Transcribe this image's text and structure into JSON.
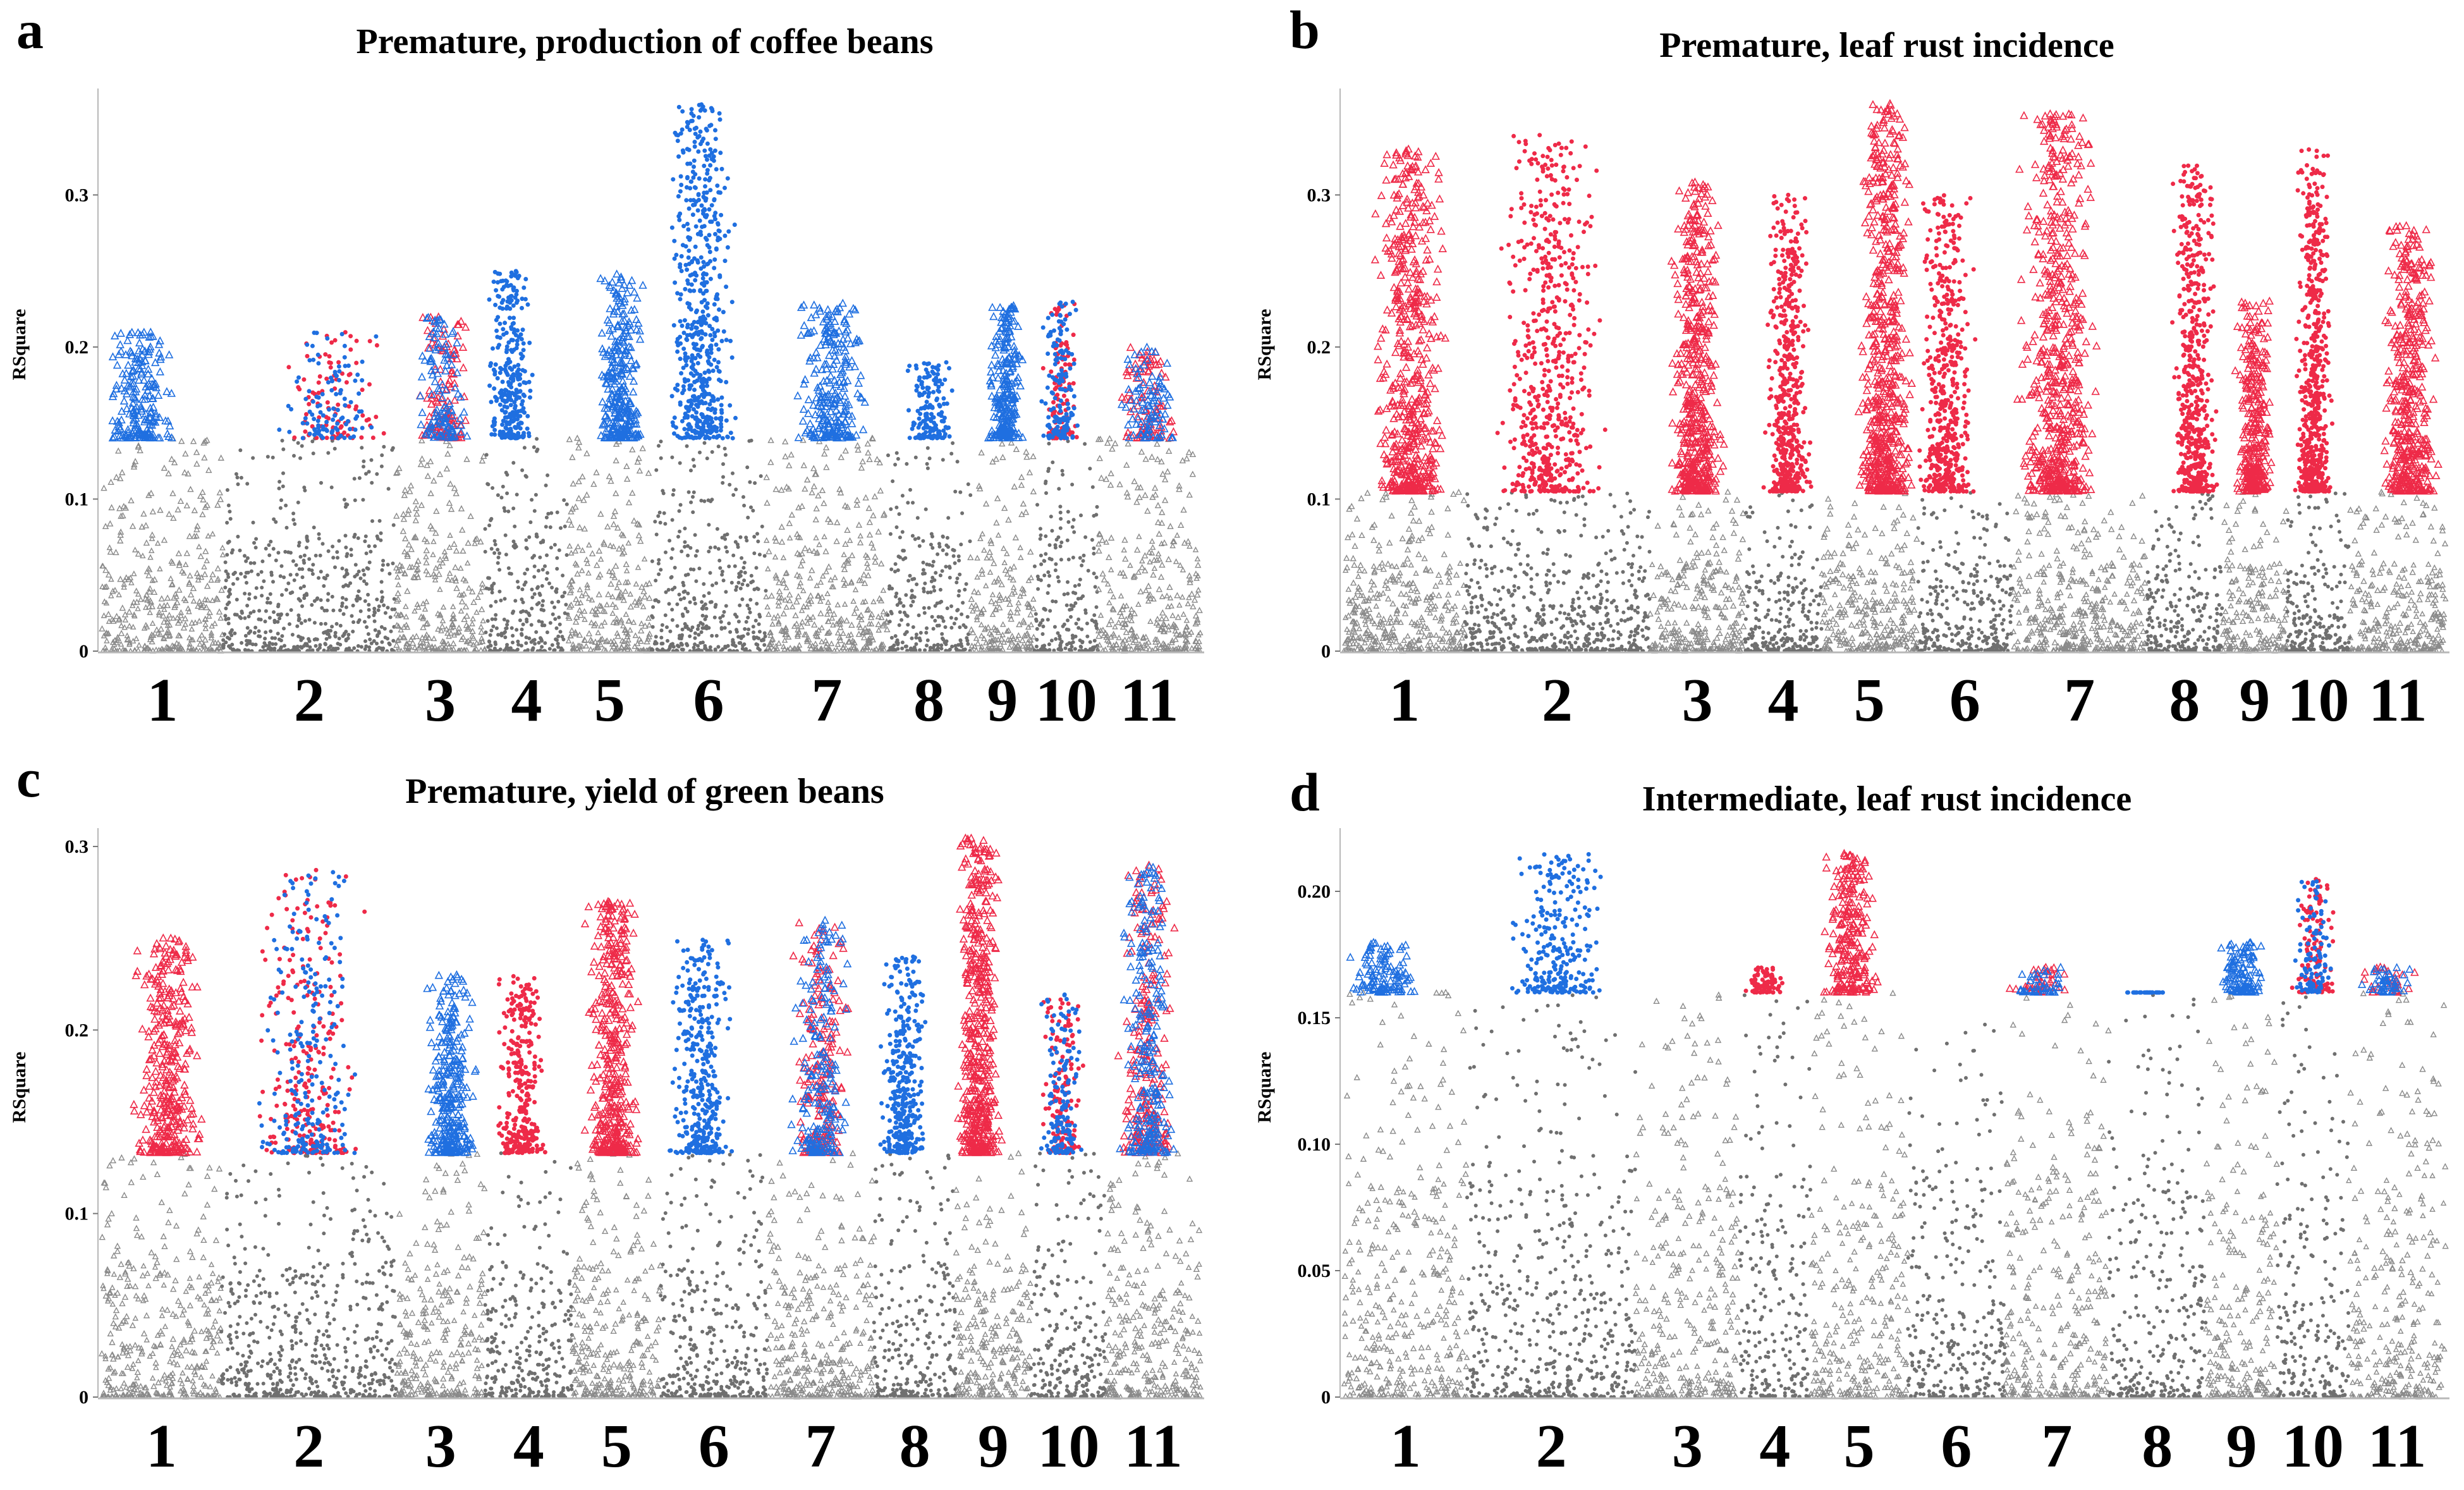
{
  "colors": {
    "gray": "#6f6f6f",
    "gray_triangle": "#8a8a8a",
    "red": "#ee2a48",
    "blue": "#1f6fe0",
    "axis": "#b8b8b8"
  },
  "chart_data": [
    {
      "panel": "a",
      "type": "scatter",
      "title": "Premature, production of coffee beans",
      "ylabel": "RSquare",
      "ylim": [
        0,
        0.37
      ],
      "yticks": [
        0,
        0.1,
        0.2,
        0.3
      ],
      "ytick_labels": [
        "0",
        "0.1",
        "0.2",
        "0.3"
      ],
      "threshold": 0.14,
      "chromosomes": [
        "1",
        "2",
        "3",
        "4",
        "5",
        "6",
        "7",
        "8",
        "9",
        "10",
        "11"
      ],
      "series": [
        {
          "name": "chr1",
          "peak": 0.21,
          "hi_color": "blue"
        },
        {
          "name": "chr2",
          "peak": 0.21,
          "hi_color": "mixed"
        },
        {
          "name": "chr3",
          "peak": 0.22,
          "hi_color": "mixed"
        },
        {
          "name": "chr4",
          "peak": 0.25,
          "hi_color": "blue"
        },
        {
          "name": "chr5",
          "peak": 0.25,
          "hi_color": "blue"
        },
        {
          "name": "chr6",
          "peak": 0.36,
          "hi_color": "blue"
        },
        {
          "name": "chr7",
          "peak": 0.23,
          "hi_color": "blue"
        },
        {
          "name": "chr8",
          "peak": 0.19,
          "hi_color": "blue"
        },
        {
          "name": "chr9",
          "peak": 0.23,
          "hi_color": "blue"
        },
        {
          "name": "chr10",
          "peak": 0.23,
          "hi_color": "mixed"
        },
        {
          "name": "chr11",
          "peak": 0.2,
          "hi_color": "mixed"
        }
      ]
    },
    {
      "panel": "b",
      "type": "scatter",
      "title": "Premature, leaf rust incidence",
      "ylabel": "RSquare",
      "ylim": [
        0,
        0.37
      ],
      "yticks": [
        0,
        0.1,
        0.2,
        0.3
      ],
      "ytick_labels": [
        "0",
        "0.1",
        "0.2",
        "0.3"
      ],
      "threshold": 0.105,
      "chromosomes": [
        "1",
        "2",
        "3",
        "4",
        "5",
        "6",
        "7",
        "8",
        "9",
        "10",
        "11"
      ],
      "series": [
        {
          "name": "chr1",
          "peak": 0.33,
          "hi_color": "red"
        },
        {
          "name": "chr2",
          "peak": 0.34,
          "hi_color": "red"
        },
        {
          "name": "chr3",
          "peak": 0.31,
          "hi_color": "red"
        },
        {
          "name": "chr4",
          "peak": 0.3,
          "hi_color": "red"
        },
        {
          "name": "chr5",
          "peak": 0.36,
          "hi_color": "red"
        },
        {
          "name": "chr6",
          "peak": 0.3,
          "hi_color": "red"
        },
        {
          "name": "chr7",
          "peak": 0.355,
          "hi_color": "red"
        },
        {
          "name": "chr8",
          "peak": 0.32,
          "hi_color": "red"
        },
        {
          "name": "chr9",
          "peak": 0.23,
          "hi_color": "red"
        },
        {
          "name": "chr10",
          "peak": 0.33,
          "hi_color": "red"
        },
        {
          "name": "chr11",
          "peak": 0.28,
          "hi_color": "red"
        }
      ]
    },
    {
      "panel": "c",
      "type": "scatter",
      "title": "Premature, yield of green beans",
      "ylabel": "RSquare",
      "ylim": [
        0,
        0.31
      ],
      "yticks": [
        0,
        0.1,
        0.2,
        0.3
      ],
      "ytick_labels": [
        "0",
        "0.1",
        "0.2",
        "0.3"
      ],
      "threshold": 0.133,
      "chromosomes": [
        "1",
        "2",
        "3",
        "4",
        "5",
        "6",
        "7",
        "8",
        "9",
        "10",
        "11"
      ],
      "series": [
        {
          "name": "chr1",
          "peak": 0.25,
          "hi_color": "red"
        },
        {
          "name": "chr2",
          "peak": 0.29,
          "hi_color": "mixed"
        },
        {
          "name": "chr3",
          "peak": 0.23,
          "hi_color": "blue"
        },
        {
          "name": "chr4",
          "peak": 0.23,
          "hi_color": "red"
        },
        {
          "name": "chr5",
          "peak": 0.27,
          "hi_color": "red"
        },
        {
          "name": "chr6",
          "peak": 0.25,
          "hi_color": "blue"
        },
        {
          "name": "chr7",
          "peak": 0.26,
          "hi_color": "mixed"
        },
        {
          "name": "chr8",
          "peak": 0.24,
          "hi_color": "blue"
        },
        {
          "name": "chr9",
          "peak": 0.305,
          "hi_color": "red"
        },
        {
          "name": "chr10",
          "peak": 0.22,
          "hi_color": "mixed"
        },
        {
          "name": "chr11",
          "peak": 0.29,
          "hi_color": "mixed"
        }
      ]
    },
    {
      "panel": "d",
      "type": "scatter",
      "title": "Intermediate, leaf rust incidence",
      "ylabel": "RSquare",
      "ylim": [
        0,
        0.225
      ],
      "yticks": [
        0,
        0.05,
        0.1,
        0.15,
        0.2
      ],
      "ytick_labels": [
        "0",
        "0.05",
        "0.10",
        "0.15",
        "0.20"
      ],
      "threshold": 0.16,
      "chromosomes": [
        "1",
        "2",
        "3",
        "4",
        "5",
        "6",
        "7",
        "8",
        "9",
        "10",
        "11"
      ],
      "series": [
        {
          "name": "chr1",
          "peak": 0.18,
          "hi_color": "blue"
        },
        {
          "name": "chr2",
          "peak": 0.215,
          "hi_color": "blue"
        },
        {
          "name": "chr3",
          "peak": 0.15,
          "hi_color": "none"
        },
        {
          "name": "chr4",
          "peak": 0.17,
          "hi_color": "red"
        },
        {
          "name": "chr5",
          "peak": 0.215,
          "hi_color": "red"
        },
        {
          "name": "chr6",
          "peak": 0.155,
          "hi_color": "none"
        },
        {
          "name": "chr7",
          "peak": 0.17,
          "hi_color": "mixed"
        },
        {
          "name": "chr8",
          "peak": 0.16,
          "hi_color": "blue"
        },
        {
          "name": "chr9",
          "peak": 0.18,
          "hi_color": "blue"
        },
        {
          "name": "chr10",
          "peak": 0.205,
          "hi_color": "mixed"
        },
        {
          "name": "chr11",
          "peak": 0.17,
          "hi_color": "mixed"
        }
      ]
    }
  ]
}
